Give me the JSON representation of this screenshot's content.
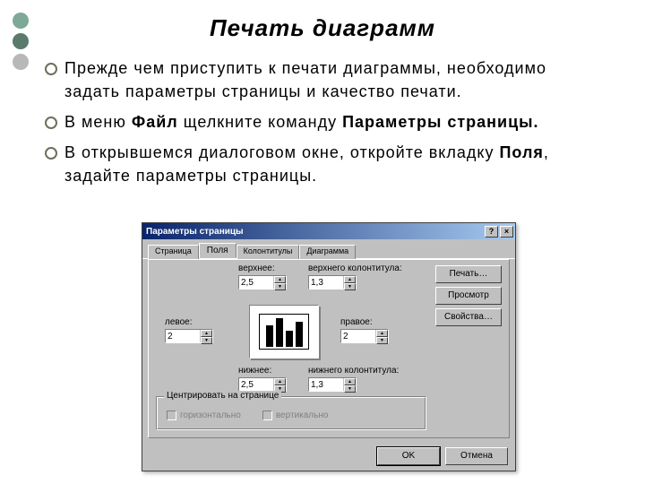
{
  "decor": {
    "colors": [
      "#7ea897",
      "#5a7a6c",
      "#b8b8b8"
    ]
  },
  "title": "Печать диаграмм",
  "bullets": [
    {
      "pre": "Прежде чем приступить к печати диаграммы, необходимо задать параметры страницы и качество печати."
    },
    {
      "pre": "В меню ",
      "b1": "Файл",
      "mid": " щелкните команду ",
      "b2": "Параметры страницы."
    },
    {
      "pre": "В открывшемся диалоговом окне, откройте вкладку ",
      "b1": "Поля",
      "mid": ", задайте параметры страницы."
    }
  ],
  "dialog": {
    "title": "Параметры страницы",
    "help_glyph": "?",
    "close_glyph": "×",
    "tabs": [
      "Страница",
      "Поля",
      "Колонтитулы",
      "Диаграмма"
    ],
    "active_tab": 1,
    "fields": {
      "top": {
        "label": "верхнее:",
        "value": "2,5"
      },
      "header": {
        "label": "верхнего колонтитула:",
        "value": "1,3"
      },
      "left": {
        "label": "левое:",
        "value": "2"
      },
      "right": {
        "label": "правое:",
        "value": "2"
      },
      "bottom": {
        "label": "нижнее:",
        "value": "2,5"
      },
      "footer": {
        "label": "нижнего колонтитула:",
        "value": "1,3"
      }
    },
    "preview_bars": [
      24,
      32,
      18,
      28
    ],
    "side_buttons": {
      "print": "Печать…",
      "preview": "Просмотр",
      "props": "Свойства…"
    },
    "center_group": {
      "legend": "Центрировать на странице",
      "h": "горизонтально",
      "v": "вертикально"
    },
    "footer": {
      "ok": "OK",
      "cancel": "Отмена"
    }
  }
}
